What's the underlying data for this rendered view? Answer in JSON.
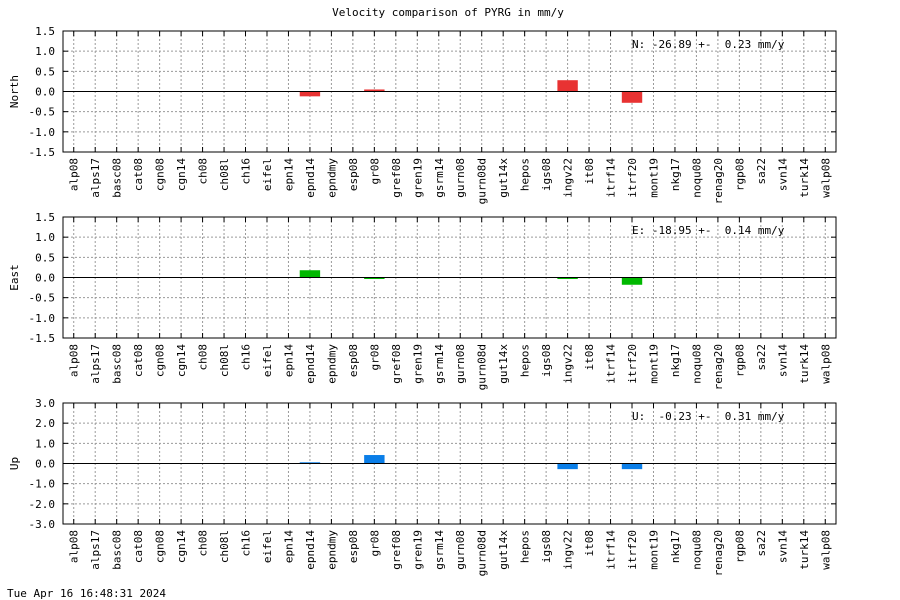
{
  "title": "Velocity comparison of PYRG in mm/y",
  "timestamp": "Tue Apr 16 16:48:31 2024",
  "chart_data": {
    "type": "bar",
    "title": "Velocity comparison of PYRG in mm/y",
    "categories": [
      "alp08",
      "alps17",
      "basc08",
      "cat08",
      "cgn08",
      "cgn14",
      "ch08",
      "ch08l",
      "ch16",
      "eifel",
      "epn14",
      "epnd14",
      "epndmy",
      "esp08",
      "gr08",
      "gref08",
      "gren19",
      "gsrm14",
      "gurn08",
      "gurn08d",
      "gut14x",
      "hepos",
      "igs08",
      "ingv22",
      "it08",
      "itrf14",
      "itrf20",
      "mont19",
      "nkg17",
      "noqu08",
      "renag20",
      "rgp08",
      "sa22",
      "svn14",
      "turk14",
      "walp08"
    ],
    "grid": true,
    "panels": [
      {
        "name": "north",
        "ylabel": "North",
        "color": "#e83232",
        "ylim": [
          -1.5,
          1.5
        ],
        "yticks": [
          "1.5",
          "1.0",
          "0.5",
          "0.0",
          "-0.5",
          "-1.0",
          "-1.5"
        ],
        "ytick_values": [
          1.5,
          1.0,
          0.5,
          0.0,
          -0.5,
          -1.0,
          -1.5
        ],
        "annotation": "N: -26.89 +-  0.23 mm/y",
        "values": [
          0,
          0,
          0,
          0,
          0,
          0,
          0,
          0,
          0,
          0,
          0,
          -0.12,
          0,
          0,
          0.05,
          0,
          0,
          0,
          0,
          0,
          0,
          0,
          0,
          0.28,
          0,
          0,
          -0.28,
          0,
          0,
          0,
          0,
          0,
          0,
          0,
          0,
          0
        ]
      },
      {
        "name": "east",
        "ylabel": "East",
        "color": "#00b800",
        "ylim": [
          -1.5,
          1.5
        ],
        "yticks": [
          "1.5",
          "1.0",
          "0.5",
          "0.0",
          "-0.5",
          "-1.0",
          "-1.5"
        ],
        "ytick_values": [
          1.5,
          1.0,
          0.5,
          0.0,
          -0.5,
          -1.0,
          -1.5
        ],
        "annotation": "E: -18.95 +-  0.14 mm/y",
        "values": [
          0,
          0,
          0,
          0,
          0,
          0,
          0,
          0,
          0,
          0,
          0,
          0.18,
          0,
          0,
          -0.03,
          0,
          0,
          0,
          0,
          0,
          0,
          0,
          0,
          -0.03,
          0,
          0,
          -0.18,
          0,
          0,
          0,
          0,
          0,
          0,
          0,
          0,
          0
        ]
      },
      {
        "name": "up",
        "ylabel": "Up",
        "color": "#0a7ee8",
        "ylim": [
          -3.0,
          3.0
        ],
        "yticks": [
          "3.0",
          "2.0",
          "1.0",
          "0.0",
          "-1.0",
          "-2.0",
          "-3.0"
        ],
        "ytick_values": [
          3.0,
          2.0,
          1.0,
          0.0,
          -1.0,
          -2.0,
          -3.0
        ],
        "annotation": "U:  -0.23 +-  0.31 mm/y",
        "values": [
          0,
          0,
          0,
          0,
          0,
          0,
          0,
          0,
          0,
          0,
          0,
          0.06,
          0,
          0,
          0.42,
          0,
          0,
          0,
          0,
          0,
          0,
          0,
          0,
          -0.28,
          0,
          0,
          -0.28,
          0,
          0,
          0,
          0,
          0,
          0,
          0,
          0,
          0
        ]
      }
    ]
  }
}
